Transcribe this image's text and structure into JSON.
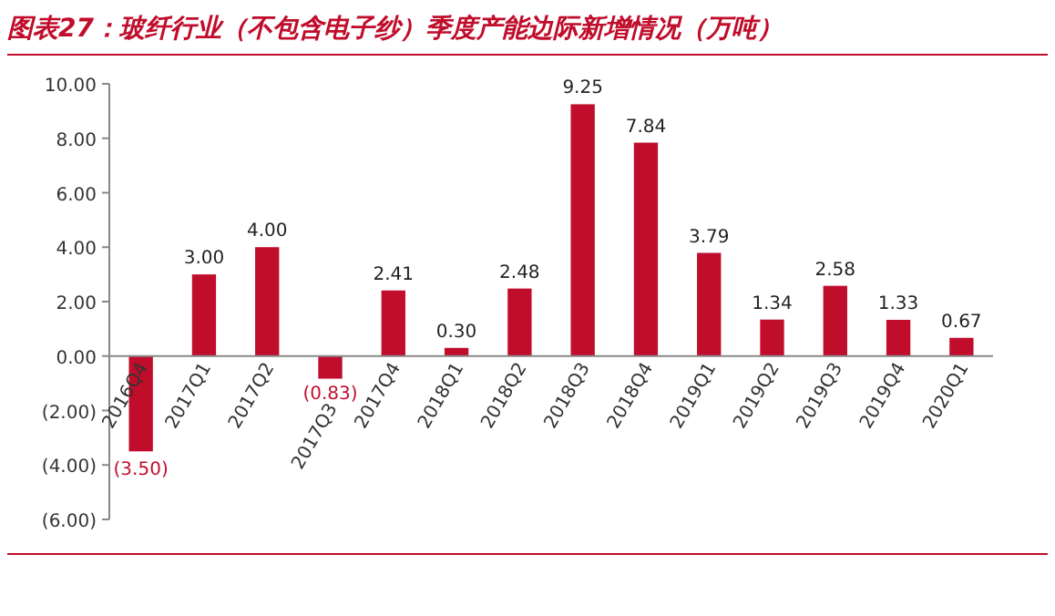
{
  "chart_data": {
    "type": "bar",
    "title": "图表27：玻纤行业（不包含电子纱）季度产能边际新增情况（万吨）",
    "categories": [
      "2016Q4",
      "2017Q1",
      "2017Q2",
      "2017Q3",
      "2017Q4",
      "2018Q1",
      "2018Q2",
      "2018Q3",
      "2018Q4",
      "2019Q1",
      "2019Q2",
      "2019Q3",
      "2019Q4",
      "2020Q1"
    ],
    "values": [
      -3.5,
      3.0,
      4.0,
      -0.83,
      2.41,
      0.3,
      2.48,
      9.25,
      7.84,
      3.79,
      1.34,
      2.58,
      1.33,
      0.67
    ],
    "value_labels": [
      "(3.50)",
      "3.00",
      "4.00",
      "(0.83)",
      "2.41",
      "0.30",
      "2.48",
      "9.25",
      "7.84",
      "3.79",
      "1.34",
      "2.58",
      "1.33",
      "0.67"
    ],
    "color": "#c00d2b",
    "ylim": [
      -6,
      10
    ],
    "yticks": [
      {
        "value": -6,
        "label": "(6.00)"
      },
      {
        "value": -4,
        "label": "(4.00)"
      },
      {
        "value": -2,
        "label": "(2.00)"
      },
      {
        "value": 0,
        "label": "0.00"
      },
      {
        "value": 2,
        "label": "2.00"
      },
      {
        "value": 4,
        "label": "4.00"
      },
      {
        "value": 6,
        "label": "6.00"
      },
      {
        "value": 8,
        "label": "8.00"
      },
      {
        "value": 10,
        "label": "10.00"
      }
    ],
    "grid": false
  }
}
